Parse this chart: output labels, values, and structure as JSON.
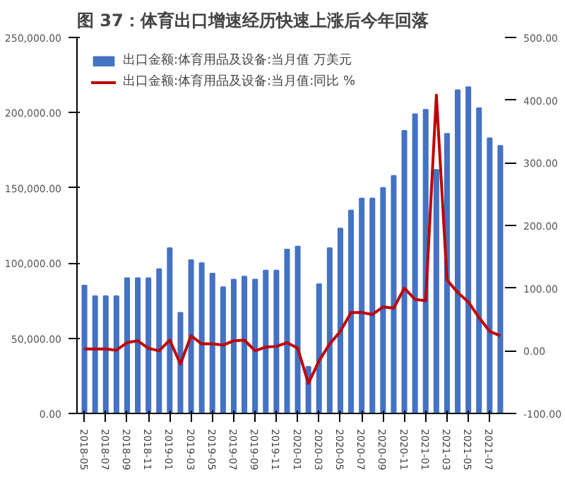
{
  "chart_data": {
    "type": "bar",
    "title": "图 37：体育出口增速经历快速上涨后今年回落",
    "categories": [
      "2018-05",
      null,
      "2018-07",
      null,
      "2018-09",
      null,
      "2018-11",
      null,
      "2019-01",
      null,
      "2019-03",
      null,
      "2019-05",
      null,
      "2019-07",
      null,
      "2019-09",
      null,
      "2019-11",
      null,
      "2020-01",
      null,
      "2020-03",
      null,
      "2020-05",
      null,
      "2020-07",
      null,
      "2020-09",
      null,
      "2020-11",
      null,
      "2021-01",
      null,
      "2021-03",
      null,
      "2021-05",
      null,
      "2021-07",
      null
    ],
    "series": [
      {
        "name": "出口金额:体育用品及设备:当月值 万美元",
        "color": "#4472c4",
        "values": [
          85000,
          78000,
          78000,
          78000,
          90000,
          90000,
          90000,
          96000,
          110000,
          67000,
          102000,
          100000,
          93000,
          84000,
          89000,
          91000,
          89000,
          95000,
          95000,
          109000,
          111000,
          31000,
          86000,
          110000,
          123000,
          135000,
          143000,
          143000,
          150000,
          158000,
          188000,
          199000,
          202000,
          162000,
          186000,
          215000,
          217000,
          203000,
          183000,
          178000
        ]
      },
      {
        "name": "出口金额:体育用品及设备:当月值:同比 %",
        "type": "line",
        "axis": "y2",
        "color": "#c00000",
        "values": [
          3,
          3,
          3,
          1,
          13,
          16,
          4,
          0,
          17,
          -21,
          24,
          11,
          11,
          9,
          16,
          17,
          0,
          6,
          7,
          13,
          4,
          -52,
          -16,
          11,
          31,
          61,
          61,
          58,
          70,
          68,
          100,
          82,
          80,
          408,
          113,
          93,
          78,
          53,
          31,
          24
        ]
      }
    ],
    "ylim": [
      0,
      250000
    ],
    "yticks": [
      {
        "value": 0,
        "label": "0.00"
      },
      {
        "value": 50000,
        "label": "50,000.00"
      },
      {
        "value": 100000,
        "label": "100,000.00"
      },
      {
        "value": 150000,
        "label": "150,000.00"
      },
      {
        "value": 200000,
        "label": "200,000.00"
      },
      {
        "value": 250000,
        "label": "250,000.00"
      }
    ],
    "y2lim": [
      -100,
      500
    ],
    "y2ticks": [
      {
        "value": -100,
        "label": "-100.00"
      },
      {
        "value": 0,
        "label": "0.00"
      },
      {
        "value": 100,
        "label": "100.00"
      },
      {
        "value": 200,
        "label": "200.00"
      },
      {
        "value": 300,
        "label": "300.00"
      },
      {
        "value": 400,
        "label": "400.00"
      },
      {
        "value": 500,
        "label": "500.00"
      }
    ],
    "legend": "top",
    "grid": false
  }
}
